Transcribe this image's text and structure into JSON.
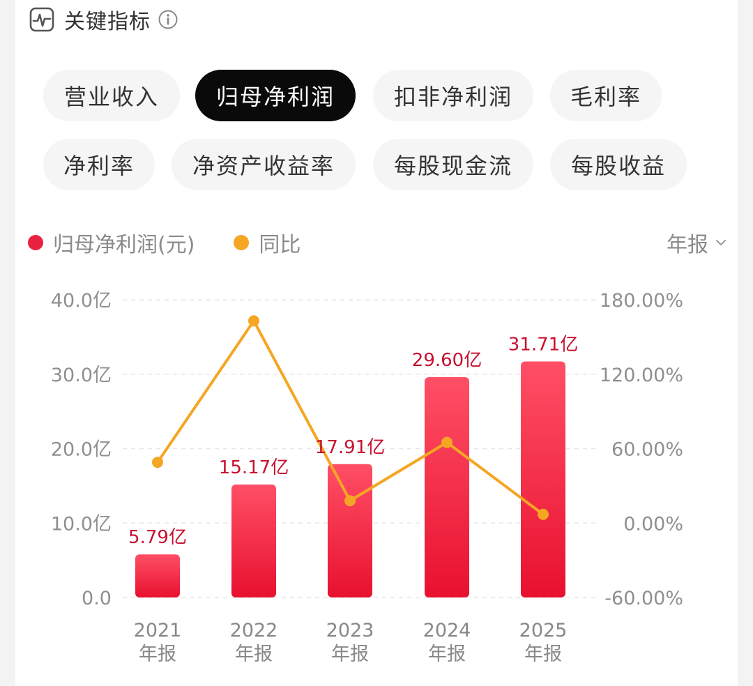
{
  "header": {
    "title": "关键指标",
    "icon": "pulse-icon",
    "info_icon": "info-icon"
  },
  "tabs": [
    {
      "label": "营业收入",
      "active": false
    },
    {
      "label": "归母净利润",
      "active": true
    },
    {
      "label": "扣非净利润",
      "active": false
    },
    {
      "label": "毛利率",
      "active": false
    },
    {
      "label": "净利率",
      "active": false
    },
    {
      "label": "净资产收益率",
      "active": false
    },
    {
      "label": "每股现金流",
      "active": false
    },
    {
      "label": "每股收益",
      "active": false
    }
  ],
  "legend": {
    "bar": {
      "label": "归母净利润(元)",
      "color": "#e8223f"
    },
    "line": {
      "label": "同比",
      "color": "#f5a623"
    }
  },
  "period_selector": {
    "label": "年报"
  },
  "chart_data": {
    "type": "bar",
    "categories": [
      "2021\n年报",
      "2022\n年报",
      "2023\n年报",
      "2024\n年报",
      "2025\n年报"
    ],
    "x_years": [
      "2021",
      "2022",
      "2023",
      "2024",
      "2025"
    ],
    "x_sub": "年报",
    "series": [
      {
        "name": "归母净利润(元)",
        "type": "bar",
        "axis": "left",
        "values": [
          5.79,
          15.17,
          17.91,
          29.6,
          31.71
        ],
        "labels": [
          "5.79亿",
          "15.17亿",
          "17.91亿",
          "29.60亿",
          "31.71亿"
        ],
        "color": "#e8223f"
      },
      {
        "name": "同比",
        "type": "line",
        "axis": "right",
        "values": [
          49,
          163,
          18,
          65,
          7
        ],
        "color": "#f5a623"
      }
    ],
    "y_left": {
      "ticks": [
        0,
        10,
        20,
        30,
        40
      ],
      "tick_labels": [
        "0.0",
        "10.0亿",
        "20.0亿",
        "30.0亿",
        "40.0亿"
      ],
      "ylim": [
        0,
        40
      ]
    },
    "y_right": {
      "ticks": [
        -60,
        0,
        60,
        120,
        180
      ],
      "tick_labels": [
        "-60.00%",
        "0.00%",
        "60.00%",
        "120.00%",
        "180.00%"
      ],
      "ylim": [
        -60,
        180
      ]
    },
    "grid": "dashed horizontal"
  }
}
